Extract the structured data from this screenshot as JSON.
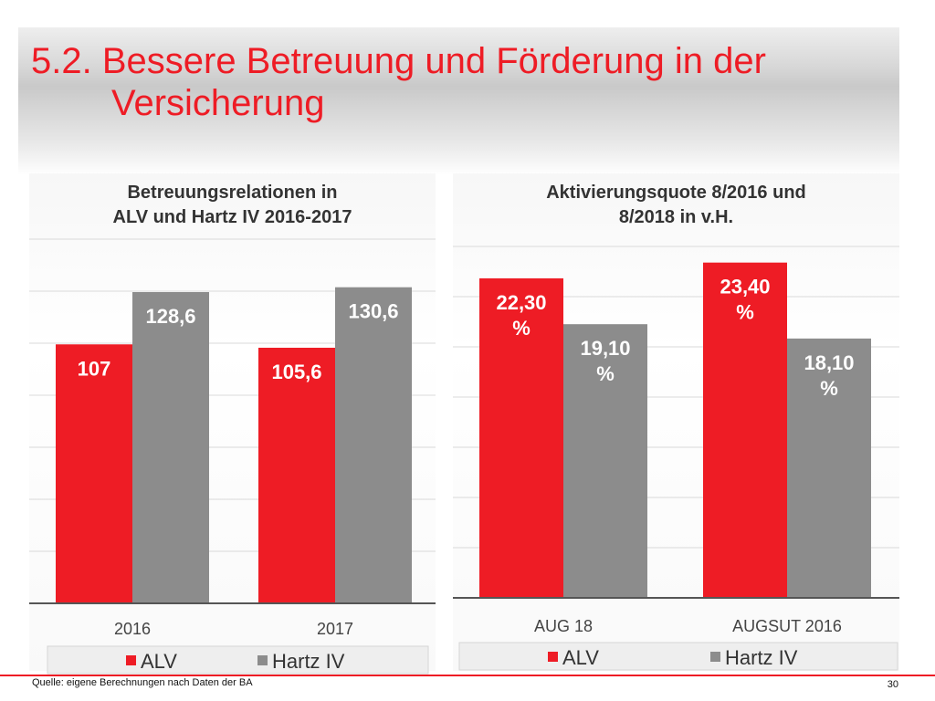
{
  "slide": {
    "title_line1": "5.2. Bessere Betreuung und Förderung in der",
    "title_line2": "Versicherung",
    "source": "Quelle: eigene Berechnungen nach Daten der BA",
    "page_number": "30",
    "accent_color": "#ee1c25"
  },
  "chart_data": [
    {
      "type": "bar",
      "title_line1": "Betreuungsrelationen in",
      "title_line2": "ALV und Hartz IV  2016-2017",
      "categories": [
        "2016",
        "2017"
      ],
      "series": [
        {
          "name": "ALV",
          "values": [
            107,
            105.6
          ],
          "labels": [
            "107",
            "105,6"
          ],
          "color": "#ee1c25"
        },
        {
          "name": "Hartz IV",
          "values": [
            128.6,
            130.6
          ],
          "labels": [
            "128,6",
            "130,6"
          ],
          "color": "#8c8c8c"
        }
      ],
      "ylim": [
        0,
        155
      ],
      "grid": true,
      "legend": "bottom"
    },
    {
      "type": "bar",
      "title_line1": "Aktivierungsquote 8/2016 und",
      "title_line2": "8/2018 in v.H.",
      "categories": [
        "AUG 18",
        "AUGSUT 2016"
      ],
      "series": [
        {
          "name": "ALV",
          "values": [
            22.3,
            23.4
          ],
          "labels": [
            "22,30 %",
            "23,40 %"
          ],
          "color": "#ee1c25"
        },
        {
          "name": "Hartz IV",
          "values": [
            19.1,
            18.1
          ],
          "labels": [
            "19,10 %",
            "18,10 %"
          ],
          "color": "#8c8c8c"
        }
      ],
      "ylim": [
        0,
        25.8
      ],
      "grid": true,
      "legend": "bottom"
    }
  ]
}
